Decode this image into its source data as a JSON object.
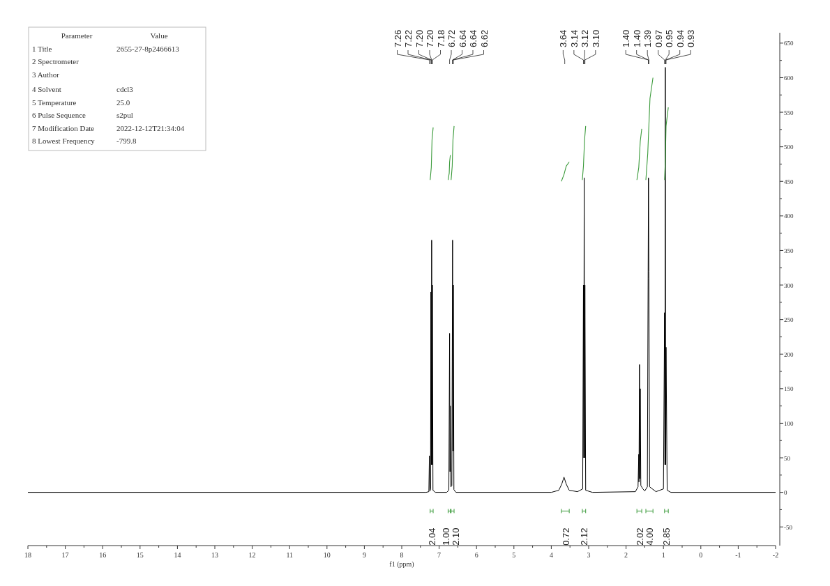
{
  "chart_data": {
    "type": "line",
    "xlabel": "f1 (ppm)",
    "xlim": [
      18,
      -2
    ],
    "xticks": [
      18,
      17,
      16,
      15,
      14,
      13,
      12,
      11,
      10,
      9,
      8,
      7,
      6,
      5,
      4,
      3,
      2,
      1,
      0,
      -1,
      -2
    ],
    "ylim": [
      -77,
      665
    ],
    "yticks": [
      -50,
      0,
      50,
      100,
      150,
      200,
      250,
      300,
      350,
      400,
      450,
      500,
      550,
      600,
      650
    ],
    "grid": false,
    "marker": "none",
    "line_style": "solid",
    "series": [
      {
        "color": "#000000",
        "x": [
          18,
          7.35,
          7.275,
          7.26,
          7.245,
          7.23,
          7.22,
          7.21,
          7.2,
          7.19,
          7.18,
          7.165,
          7.1,
          6.8,
          6.74,
          6.72,
          6.71,
          6.7,
          6.685,
          6.66,
          6.64,
          6.63,
          6.62,
          6.605,
          6.55,
          4,
          3.8,
          3.72,
          3.66,
          3.6,
          3.52,
          3.3,
          3.16,
          3.14,
          3.13,
          3.12,
          3.11,
          3.1,
          3.08,
          2.9,
          1.75,
          1.68,
          1.66,
          1.655,
          1.64,
          1.63,
          1.62,
          1.605,
          1.55,
          1.5,
          1.43,
          1.41,
          1.4,
          1.39,
          1.37,
          1.2,
          1,
          0.97,
          0.96,
          0.95,
          0.94,
          0.93,
          0.9,
          0.8,
          -2
        ],
        "values": [
          0,
          0,
          1,
          53,
          2,
          5,
          290,
          40,
          365,
          40,
          300,
          3,
          0,
          0,
          3,
          230,
          30,
          125,
          8,
          10,
          365,
          60,
          300,
          4,
          0,
          0,
          3,
          12,
          22,
          12,
          3,
          1,
          5,
          300,
          50,
          455,
          50,
          300,
          3,
          0,
          1,
          8,
          55,
          15,
          185,
          20,
          150,
          10,
          5,
          2,
          8,
          310,
          455,
          320,
          8,
          1,
          5,
          260,
          40,
          615,
          40,
          210,
          3,
          0,
          0
        ]
      },
      {
        "color": "#3a9a3a",
        "x": [
          7.24,
          7.21,
          7.19,
          7.16
        ],
        "values": [
          452,
          470,
          510,
          528
        ]
      },
      {
        "color": "#3a9a3a",
        "x": [
          6.76,
          6.73,
          6.72,
          6.7
        ],
        "values": [
          452,
          462,
          478,
          488
        ]
      },
      {
        "color": "#3a9a3a",
        "x": [
          6.68,
          6.65,
          6.63,
          6.6
        ],
        "values": [
          452,
          472,
          510,
          530
        ]
      },
      {
        "color": "#3a9a3a",
        "x": [
          3.73,
          3.66,
          3.6,
          3.52
        ],
        "values": [
          450,
          460,
          472,
          478
        ]
      },
      {
        "color": "#3a9a3a",
        "x": [
          3.17,
          3.14,
          3.11,
          3.08
        ],
        "values": [
          452,
          472,
          510,
          530
        ]
      },
      {
        "color": "#3a9a3a",
        "x": [
          1.71,
          1.66,
          1.62,
          1.58
        ],
        "values": [
          452,
          470,
          508,
          526
        ]
      },
      {
        "color": "#3a9a3a",
        "x": [
          1.47,
          1.42,
          1.36,
          1.28
        ],
        "values": [
          452,
          490,
          570,
          600
        ]
      },
      {
        "color": "#3a9a3a",
        "x": [
          0.97,
          0.95,
          0.93,
          0.87
        ],
        "values": [
          452,
          480,
          530,
          557
        ]
      }
    ],
    "annotations": [
      "Parameter",
      "Value",
      "1 Title",
      "2 Spectrometer",
      "3 Author",
      "4 Solvent",
      "5 Temperature",
      "6 Pulse Sequence",
      "7 Modification Date",
      "8 Lowest Frequency",
      "2655-27-8p2466613",
      "cdcl3",
      "25.0",
      "s2pul",
      "2022-12-12T21:34:04",
      "-799.8",
      "7.26",
      "7.22",
      "7.20",
      "7.20",
      "7.18",
      "6.72",
      "6.64",
      "6.64",
      "6.62",
      "3.64",
      "3.14",
      "3.12",
      "3.10",
      "1.40",
      "1.40",
      "1.39",
      "0.97",
      "0.95",
      "0.94",
      "0.93",
      "2.04",
      "1.00",
      "2.10",
      "0.72",
      "2.12",
      "2.02",
      "4.00",
      "2.85"
    ]
  }
}
